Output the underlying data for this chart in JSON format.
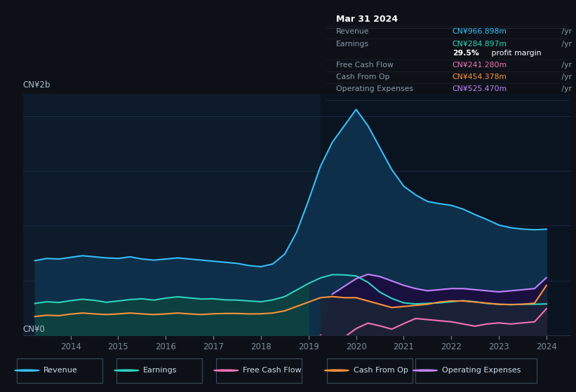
{
  "bg_color": "#0d1117",
  "chart_bg": "#0d1b2a",
  "chart_bg_right": "#0a1422",
  "title_date": "Mar 31 2024",
  "info_value_colors": [
    "#38bdf8",
    "#2dd4bf",
    "#ffffff",
    "#f472b6",
    "#fb923c",
    "#c084fc"
  ],
  "ylabel_top": "CN¥2b",
  "ylabel_bottom": "CN¥0",
  "legend_items": [
    "Revenue",
    "Earnings",
    "Free Cash Flow",
    "Cash From Op",
    "Operating Expenses"
  ],
  "legend_colors": [
    "#38bdf8",
    "#2dd4bf",
    "#f472b6",
    "#fb923c",
    "#c084fc"
  ],
  "revenue_color": "#38bdf8",
  "earnings_color": "#2dd4bf",
  "fcf_color": "#f472b6",
  "cashfromop_color": "#fb923c",
  "opex_color": "#c084fc",
  "years": [
    2013.25,
    2013.5,
    2013.75,
    2014.0,
    2014.25,
    2014.5,
    2014.75,
    2015.0,
    2015.25,
    2015.5,
    2015.75,
    2016.0,
    2016.25,
    2016.5,
    2016.75,
    2017.0,
    2017.25,
    2017.5,
    2017.75,
    2018.0,
    2018.25,
    2018.5,
    2018.75,
    2019.0,
    2019.25,
    2019.5,
    2019.75,
    2020.0,
    2020.25,
    2020.5,
    2020.75,
    2021.0,
    2021.25,
    2021.5,
    2021.75,
    2022.0,
    2022.25,
    2022.5,
    2022.75,
    2023.0,
    2023.25,
    2023.5,
    2023.75,
    2024.0
  ],
  "revenue": [
    680,
    700,
    695,
    710,
    725,
    715,
    705,
    700,
    715,
    695,
    685,
    695,
    705,
    695,
    685,
    675,
    665,
    655,
    635,
    625,
    650,
    740,
    940,
    1230,
    1540,
    1760,
    1910,
    2060,
    1910,
    1710,
    1510,
    1360,
    1280,
    1220,
    1200,
    1185,
    1150,
    1100,
    1055,
    1005,
    980,
    968,
    962,
    967
  ],
  "earnings": [
    290,
    305,
    298,
    315,
    328,
    318,
    300,
    312,
    325,
    332,
    320,
    338,
    350,
    340,
    330,
    332,
    322,
    320,
    312,
    305,
    322,
    352,
    412,
    472,
    522,
    552,
    550,
    540,
    482,
    392,
    335,
    295,
    285,
    290,
    295,
    305,
    315,
    305,
    290,
    282,
    280,
    282,
    282,
    285
  ],
  "fcf": [
    0,
    0,
    0,
    0,
    0,
    0,
    0,
    0,
    0,
    0,
    0,
    0,
    0,
    0,
    0,
    0,
    0,
    0,
    0,
    0,
    0,
    0,
    0,
    0,
    0,
    -50,
    -20,
    60,
    110,
    85,
    55,
    105,
    152,
    142,
    132,
    122,
    102,
    82,
    102,
    112,
    102,
    112,
    122,
    241
  ],
  "cashfromop": [
    170,
    182,
    178,
    192,
    202,
    194,
    188,
    194,
    202,
    194,
    188,
    194,
    202,
    194,
    188,
    195,
    198,
    198,
    194,
    195,
    202,
    222,
    262,
    302,
    342,
    352,
    342,
    342,
    312,
    282,
    252,
    262,
    272,
    282,
    302,
    312,
    312,
    302,
    292,
    282,
    278,
    282,
    292,
    454
  ],
  "opex": [
    0,
    0,
    0,
    0,
    0,
    0,
    0,
    0,
    0,
    0,
    0,
    0,
    0,
    0,
    0,
    0,
    0,
    0,
    0,
    0,
    0,
    0,
    0,
    0,
    0,
    375,
    445,
    515,
    555,
    535,
    495,
    455,
    425,
    405,
    415,
    425,
    425,
    415,
    405,
    395,
    405,
    415,
    425,
    525
  ],
  "xlim": [
    2013.0,
    2024.5
  ],
  "ylim": [
    0,
    2200
  ],
  "xticks": [
    2014,
    2015,
    2016,
    2017,
    2018,
    2019,
    2020,
    2021,
    2022,
    2023,
    2024
  ],
  "highlight_x_start": 2019.25,
  "fcf_start_year": 2019.25,
  "opex_start_year": 2019.5
}
